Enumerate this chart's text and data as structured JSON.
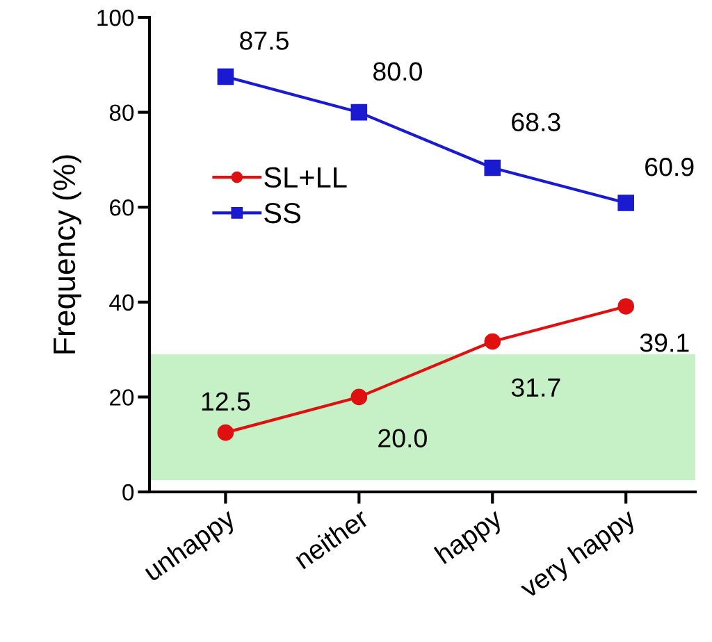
{
  "chart_data": {
    "type": "line",
    "ylabel": "Frequency (%)",
    "categories": [
      "unhappy",
      "neither",
      "happy",
      "very happy"
    ],
    "series": [
      {
        "name": "SL+LL",
        "color": "#e01010",
        "marker": "circle",
        "values": [
          12.5,
          20.0,
          31.7,
          39.1
        ],
        "value_labels": [
          "12.5",
          "20.0",
          "31.7",
          "39.1"
        ]
      },
      {
        "name": "SS",
        "color": "#1a1ad0",
        "marker": "square",
        "values": [
          87.5,
          80.0,
          68.3,
          60.9
        ],
        "value_labels": [
          "87.5",
          "80.0",
          "68.3",
          "60.9"
        ]
      }
    ],
    "ylim": [
      0,
      100
    ],
    "yticks": [
      0,
      20,
      40,
      60,
      80,
      100
    ],
    "bands": [
      {
        "axis": "y",
        "from": 2.5,
        "to": 29,
        "color": "#c6f0c6"
      }
    ],
    "legend": "left",
    "grid": false
  }
}
